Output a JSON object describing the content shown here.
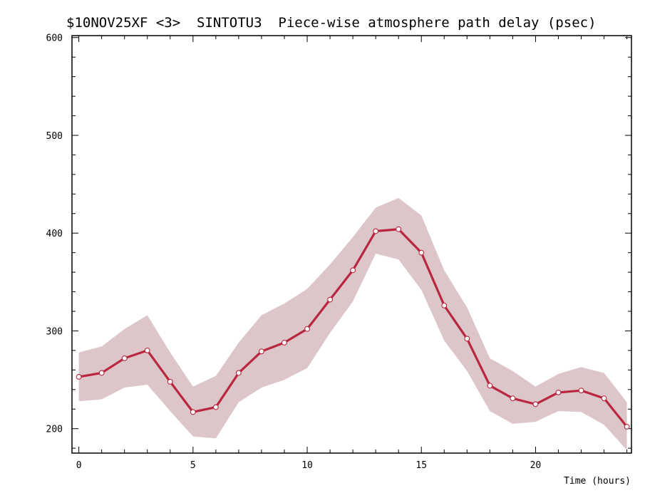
{
  "chart_data": {
    "type": "line",
    "title": "$10NOV25XF <3>  SINTOTU3  Piece-wise atmosphere path delay (psec)",
    "xlabel": "Time (hours)",
    "ylabel": "",
    "xlim": [
      -0.3,
      24.2
    ],
    "ylim": [
      175,
      602
    ],
    "x_ticks": [
      "0",
      "5",
      "10",
      "15",
      "20"
    ],
    "y_ticks": [
      "200",
      "300",
      "400",
      "500",
      "600"
    ],
    "x_tick_values": [
      0,
      5,
      10,
      15,
      20
    ],
    "y_tick_values": [
      200,
      300,
      400,
      500,
      600
    ],
    "grid": false,
    "colors": {
      "line": "#b8263f",
      "band": "#dcc6ca",
      "marker_fill": "#ffffff",
      "axes": "#000000"
    },
    "series": [
      {
        "x": [
          0,
          1,
          2,
          3,
          4,
          5,
          6,
          7,
          8,
          9,
          10,
          11,
          12,
          13,
          14,
          15,
          16,
          17,
          18,
          19,
          20,
          21,
          22,
          23,
          24
        ],
        "values": [
          253,
          257,
          272,
          280,
          248,
          217,
          222,
          257,
          279,
          288,
          302,
          332,
          362,
          402,
          404,
          380,
          326,
          292,
          244,
          231,
          225,
          237,
          239,
          231,
          202
        ],
        "upper": [
          278,
          284,
          302,
          316,
          278,
          243,
          254,
          288,
          316,
          328,
          343,
          368,
          396,
          426,
          436,
          418,
          362,
          324,
          272,
          259,
          243,
          256,
          263,
          257,
          227
        ],
        "lower": [
          228,
          230,
          242,
          245,
          218,
          192,
          190,
          227,
          242,
          250,
          262,
          298,
          330,
          379,
          373,
          342,
          290,
          259,
          218,
          205,
          207,
          218,
          217,
          204,
          178
        ]
      }
    ]
  }
}
